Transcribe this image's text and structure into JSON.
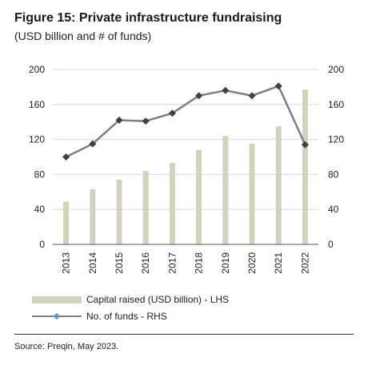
{
  "figure": {
    "title": "Figure 15: Private infrastructure fundraising",
    "subtitle": "(USD billion and # of funds)",
    "source": "Source: Preqin, May 2023."
  },
  "legend": {
    "bar_label": "Capital raised (USD billion) - LHS",
    "line_label": "No. of funds - RHS"
  },
  "colors": {
    "bar": "#d4d1bf",
    "line": "#808080",
    "marker": "#404040",
    "grid": "#d9d9d9",
    "axis": "#555555"
  },
  "chart_data": {
    "type": "bar",
    "categories": [
      "2013",
      "2014",
      "2015",
      "2016",
      "2017",
      "2018",
      "2019",
      "2020",
      "2021",
      "2022"
    ],
    "series": [
      {
        "name": "Capital raised (USD billion) - LHS",
        "type": "bar",
        "axis": "left",
        "values": [
          49,
          63,
          74,
          84,
          93,
          108,
          124,
          115,
          135,
          177
        ]
      },
      {
        "name": "No. of funds - RHS",
        "type": "line",
        "axis": "right",
        "values": [
          100,
          115,
          142,
          141,
          150,
          170,
          176,
          170,
          181,
          114
        ]
      }
    ],
    "y_left": {
      "range": [
        0,
        200
      ],
      "ticks": [
        "0",
        "40",
        "80",
        "120",
        "160",
        "200"
      ]
    },
    "y_right": {
      "range": [
        0,
        200
      ],
      "ticks": [
        "0",
        "40",
        "80",
        "120",
        "160",
        "200"
      ]
    },
    "grid": true,
    "legend_position": "bottom"
  }
}
